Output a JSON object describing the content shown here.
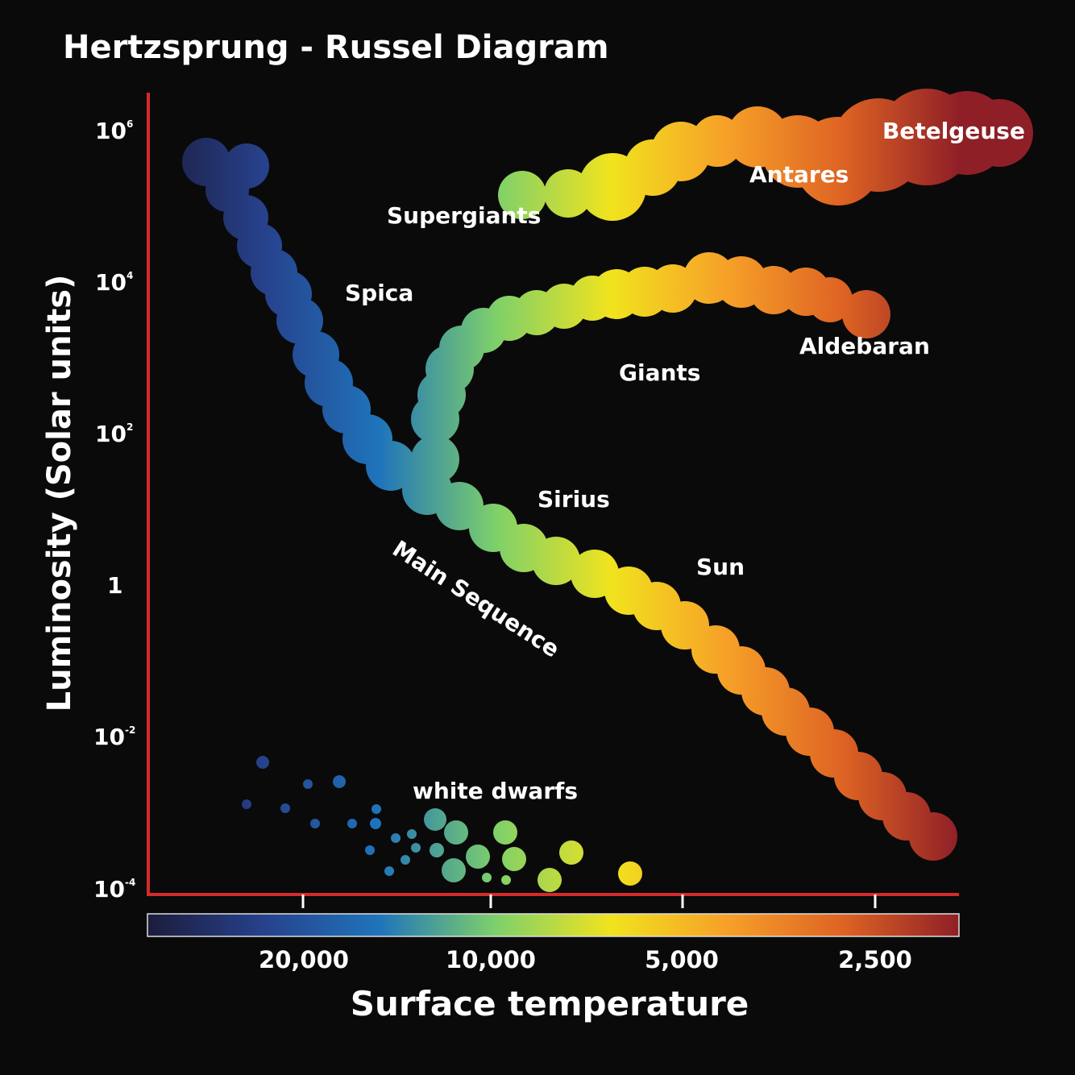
{
  "title": "Hertzsprung - Russel Diagram",
  "y_axis": {
    "label": "Luminosity (Solar units)",
    "ticks": [
      {
        "base": "10",
        "exp": "6"
      },
      {
        "base": "10",
        "exp": "4"
      },
      {
        "base": "10",
        "exp": "2"
      },
      {
        "base": "1",
        "exp": ""
      },
      {
        "base": "10",
        "exp": "-2"
      },
      {
        "base": "10",
        "exp": "-4"
      }
    ]
  },
  "x_axis": {
    "label": "Surface temperature",
    "ticks": [
      "20,000",
      "10,000",
      "5,000",
      "2,500"
    ]
  },
  "colors": {
    "axis": "#d42a2a",
    "background": "#0a0a0a",
    "text": "#ffffff",
    "scale": [
      "#1c1c3c",
      "#27418c",
      "#1f74bb",
      "#7ed06a",
      "#f1e31e",
      "#f6a028",
      "#de6324",
      "#8f1f27"
    ]
  },
  "labels": {
    "supergiants": "Supergiants",
    "antares": "Antares",
    "betelgeuse": "Betelgeuse",
    "spica": "Spica",
    "giants": "Giants",
    "aldebaran": "Aldebaran",
    "sirius": "Sirius",
    "sun": "Sun",
    "main_sequence": "Main Sequence",
    "white_dwarfs": "white dwarfs"
  }
}
